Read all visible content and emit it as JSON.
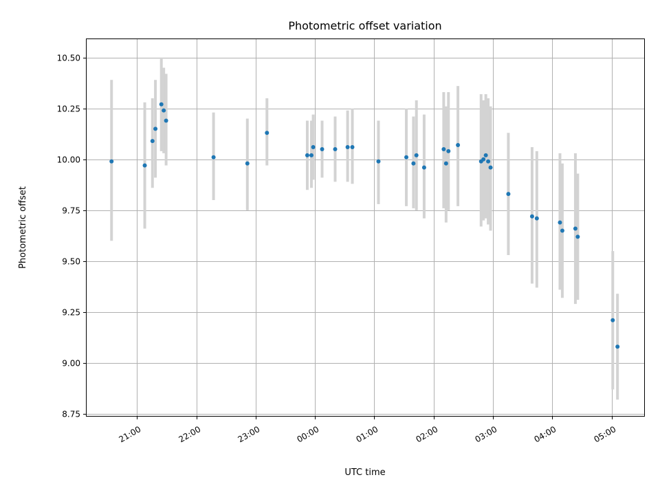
{
  "chart_data": {
    "type": "scatter",
    "title": "Photometric offset variation",
    "xlabel": "UTC time",
    "ylabel": "Photometric offset",
    "grid": true,
    "xlim": [
      -0.85,
      8.55
    ],
    "ylim": [
      8.74,
      10.59
    ],
    "x_ticks": [
      {
        "value": 0,
        "label": "21:00"
      },
      {
        "value": 1,
        "label": "22:00"
      },
      {
        "value": 2,
        "label": "23:00"
      },
      {
        "value": 3,
        "label": "00:00"
      },
      {
        "value": 4,
        "label": "01:00"
      },
      {
        "value": 5,
        "label": "02:00"
      },
      {
        "value": 6,
        "label": "03:00"
      },
      {
        "value": 7,
        "label": "04:00"
      },
      {
        "value": 8,
        "label": "05:00"
      }
    ],
    "y_ticks": [
      {
        "value": 8.75,
        "label": "8.75"
      },
      {
        "value": 9.0,
        "label": "9.00"
      },
      {
        "value": 9.25,
        "label": "9.25"
      },
      {
        "value": 9.5,
        "label": "9.50"
      },
      {
        "value": 9.75,
        "label": "9.75"
      },
      {
        "value": 10.0,
        "label": "10.00"
      },
      {
        "value": 10.25,
        "label": "10.25"
      },
      {
        "value": 10.5,
        "label": "10.50"
      }
    ],
    "series": [
      {
        "name": "offset",
        "marker_color": "#1f77b4",
        "errorbar_color": "#d3d3d3",
        "points": [
          {
            "x": -0.43,
            "y": 9.99,
            "lo": 9.6,
            "hi": 10.39
          },
          {
            "x": 0.13,
            "y": 9.97,
            "lo": 9.66,
            "hi": 10.28
          },
          {
            "x": 0.26,
            "y": 10.09,
            "lo": 9.86,
            "hi": 10.3
          },
          {
            "x": 0.31,
            "y": 10.15,
            "lo": 9.91,
            "hi": 10.39
          },
          {
            "x": 0.41,
            "y": 10.27,
            "lo": 10.04,
            "hi": 10.5
          },
          {
            "x": 0.45,
            "y": 10.24,
            "lo": 10.03,
            "hi": 10.45
          },
          {
            "x": 0.49,
            "y": 10.19,
            "lo": 9.97,
            "hi": 10.42
          },
          {
            "x": 1.29,
            "y": 10.01,
            "lo": 9.8,
            "hi": 10.23
          },
          {
            "x": 1.86,
            "y": 9.98,
            "lo": 9.75,
            "hi": 10.2
          },
          {
            "x": 2.19,
            "y": 10.13,
            "lo": 9.97,
            "hi": 10.3
          },
          {
            "x": 2.87,
            "y": 10.02,
            "lo": 9.85,
            "hi": 10.19
          },
          {
            "x": 2.94,
            "y": 10.02,
            "lo": 9.86,
            "hi": 10.19
          },
          {
            "x": 2.97,
            "y": 10.06,
            "lo": 9.9,
            "hi": 10.22
          },
          {
            "x": 3.12,
            "y": 10.05,
            "lo": 9.91,
            "hi": 10.19
          },
          {
            "x": 3.34,
            "y": 10.05,
            "lo": 9.89,
            "hi": 10.21
          },
          {
            "x": 3.55,
            "y": 10.06,
            "lo": 9.89,
            "hi": 10.24
          },
          {
            "x": 3.63,
            "y": 10.06,
            "lo": 9.88,
            "hi": 10.25
          },
          {
            "x": 4.07,
            "y": 9.99,
            "lo": 9.78,
            "hi": 10.19
          },
          {
            "x": 4.54,
            "y": 10.01,
            "lo": 9.77,
            "hi": 10.25
          },
          {
            "x": 4.66,
            "y": 9.98,
            "lo": 9.76,
            "hi": 10.21
          },
          {
            "x": 4.71,
            "y": 10.02,
            "lo": 9.75,
            "hi": 10.29
          },
          {
            "x": 4.84,
            "y": 9.96,
            "lo": 9.71,
            "hi": 10.22
          },
          {
            "x": 5.17,
            "y": 10.05,
            "lo": 9.76,
            "hi": 10.33
          },
          {
            "x": 5.21,
            "y": 9.98,
            "lo": 9.69,
            "hi": 10.26
          },
          {
            "x": 5.25,
            "y": 10.04,
            "lo": 9.75,
            "hi": 10.33
          },
          {
            "x": 5.41,
            "y": 10.07,
            "lo": 9.77,
            "hi": 10.36
          },
          {
            "x": 5.8,
            "y": 9.99,
            "lo": 9.67,
            "hi": 10.32
          },
          {
            "x": 5.84,
            "y": 10.0,
            "lo": 9.7,
            "hi": 10.29
          },
          {
            "x": 5.88,
            "y": 10.02,
            "lo": 9.71,
            "hi": 10.32
          },
          {
            "x": 5.92,
            "y": 9.99,
            "lo": 9.68,
            "hi": 10.3
          },
          {
            "x": 5.96,
            "y": 9.96,
            "lo": 9.65,
            "hi": 10.26
          },
          {
            "x": 6.26,
            "y": 9.83,
            "lo": 9.53,
            "hi": 10.13
          },
          {
            "x": 6.66,
            "y": 9.72,
            "lo": 9.39,
            "hi": 10.06
          },
          {
            "x": 6.74,
            "y": 9.71,
            "lo": 9.37,
            "hi": 10.04
          },
          {
            "x": 7.13,
            "y": 9.69,
            "lo": 9.36,
            "hi": 10.03
          },
          {
            "x": 7.17,
            "y": 9.65,
            "lo": 9.32,
            "hi": 9.98
          },
          {
            "x": 7.39,
            "y": 9.66,
            "lo": 9.29,
            "hi": 10.03
          },
          {
            "x": 7.43,
            "y": 9.62,
            "lo": 9.31,
            "hi": 9.93
          },
          {
            "x": 8.02,
            "y": 9.21,
            "lo": 8.87,
            "hi": 9.55
          },
          {
            "x": 8.1,
            "y": 9.08,
            "lo": 8.82,
            "hi": 9.34
          }
        ]
      }
    ]
  }
}
